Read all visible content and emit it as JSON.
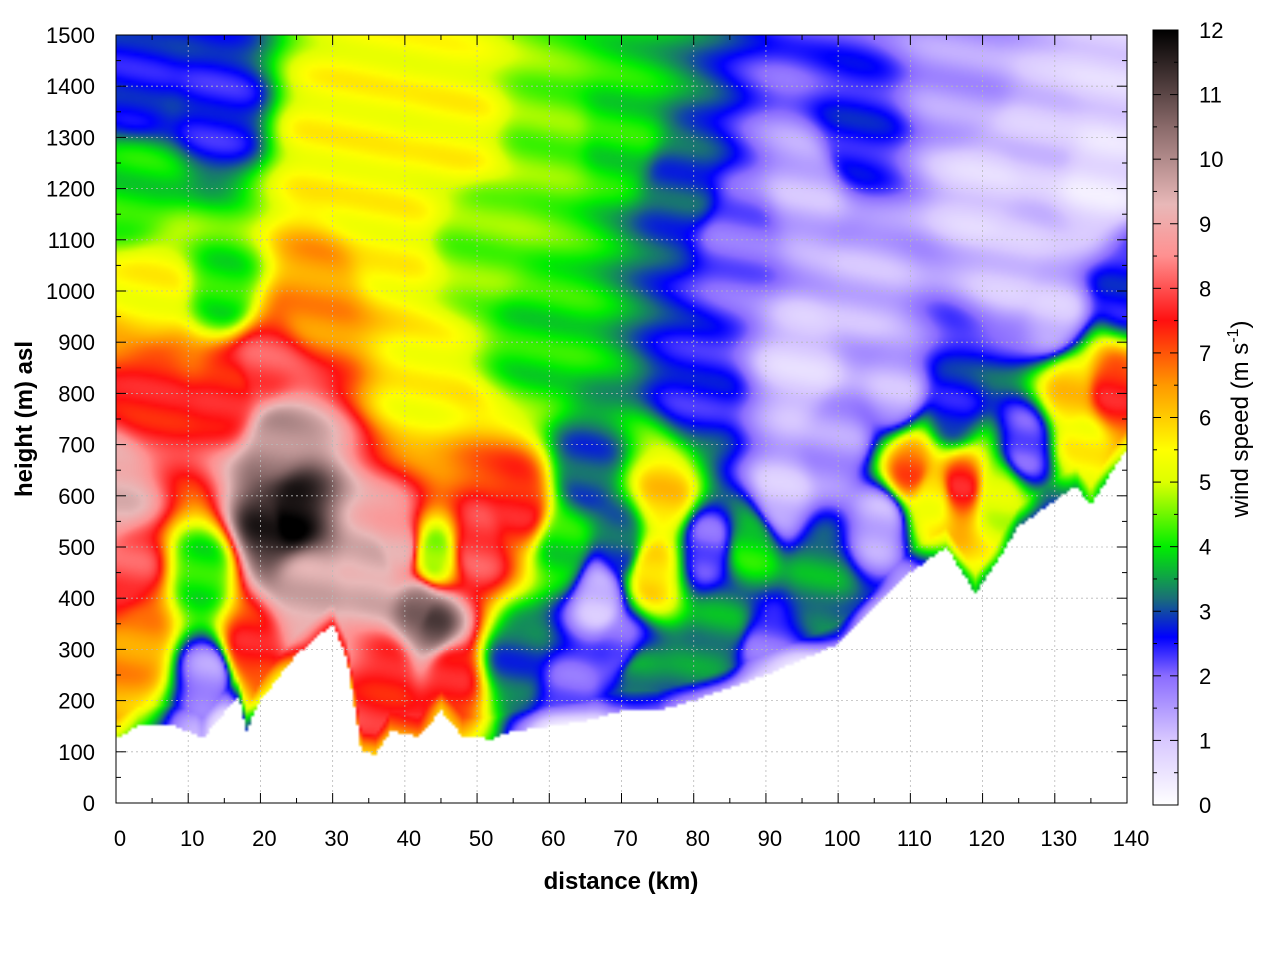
{
  "chart_data": {
    "type": "heatmap",
    "title": "",
    "xlabel": "distance (km)",
    "ylabel": "height (m) asl",
    "xlim": [
      0,
      140
    ],
    "ylim": [
      0,
      1500
    ],
    "x_ticks": [
      "0",
      "10",
      "20",
      "30",
      "40",
      "50",
      "60",
      "70",
      "80",
      "90",
      "100",
      "110",
      "120",
      "130",
      "140"
    ],
    "y_ticks": [
      "0",
      "100",
      "200",
      "300",
      "400",
      "500",
      "600",
      "700",
      "800",
      "900",
      "1000",
      "1100",
      "1200",
      "1300",
      "1400",
      "1500"
    ],
    "grid": true,
    "colorbar": {
      "label_main": "wind speed (m s",
      "label_sup": "-1",
      "label_close": ")",
      "range": [
        0,
        12
      ],
      "ticks": [
        "0",
        "1",
        "2",
        "3",
        "4",
        "5",
        "6",
        "7",
        "8",
        "9",
        "10",
        "11",
        "12"
      ],
      "stops": [
        {
          "v": 0,
          "c": "#ffffff"
        },
        {
          "v": 1,
          "c": "#d8c8ff"
        },
        {
          "v": 2,
          "c": "#8a6cff"
        },
        {
          "v": 2.6,
          "c": "#0000ff"
        },
        {
          "v": 3.2,
          "c": "#1a6e78"
        },
        {
          "v": 4,
          "c": "#00ee00"
        },
        {
          "v": 5,
          "c": "#ddff00"
        },
        {
          "v": 5.5,
          "c": "#ffff00"
        },
        {
          "v": 6.5,
          "c": "#ff9900"
        },
        {
          "v": 7.5,
          "c": "#ff1010"
        },
        {
          "v": 8.5,
          "c": "#ff9090"
        },
        {
          "v": 9.3,
          "c": "#e8b8b8"
        },
        {
          "v": 10.5,
          "c": "#8a6a6a"
        },
        {
          "v": 12,
          "c": "#000000"
        }
      ]
    },
    "terrain_height": [
      [
        0,
        125
      ],
      [
        3,
        150
      ],
      [
        8,
        150
      ],
      [
        11,
        135
      ],
      [
        12,
        125
      ],
      [
        14,
        160
      ],
      [
        17,
        210
      ],
      [
        18,
        140
      ],
      [
        20,
        200
      ],
      [
        25,
        290
      ],
      [
        30,
        350
      ],
      [
        32,
        280
      ],
      [
        34,
        100
      ],
      [
        36,
        95
      ],
      [
        38,
        140
      ],
      [
        42,
        130
      ],
      [
        45,
        180
      ],
      [
        48,
        130
      ],
      [
        52,
        125
      ],
      [
        55,
        140
      ],
      [
        60,
        150
      ],
      [
        65,
        160
      ],
      [
        70,
        180
      ],
      [
        75,
        180
      ],
      [
        80,
        200
      ],
      [
        85,
        225
      ],
      [
        90,
        250
      ],
      [
        95,
        280
      ],
      [
        100,
        310
      ],
      [
        105,
        380
      ],
      [
        110,
        450
      ],
      [
        115,
        500
      ],
      [
        119,
        410
      ],
      [
        122,
        470
      ],
      [
        125,
        540
      ],
      [
        130,
        590
      ],
      [
        133,
        620
      ],
      [
        135,
        580
      ],
      [
        138,
        650
      ],
      [
        140,
        690
      ]
    ],
    "series": [
      {
        "name": "",
        "values": [
          [
            0,
            600,
            9.3
          ],
          [
            2,
            450,
            8
          ],
          [
            3,
            320,
            6.5
          ],
          [
            5,
            800,
            7.5
          ],
          [
            5,
            1000,
            5.5
          ],
          [
            3,
            1200,
            4
          ],
          [
            3,
            1400,
            2.6
          ],
          [
            12,
            450,
            4
          ],
          [
            13,
            250,
            1.5
          ],
          [
            15,
            1000,
            4
          ],
          [
            14,
            1350,
            2.5
          ],
          [
            16,
            800,
            7.5
          ],
          [
            18,
            300,
            7.5
          ],
          [
            21,
            540,
            11.5
          ],
          [
            24,
            560,
            12
          ],
          [
            22,
            700,
            10
          ],
          [
            26,
            420,
            9.5
          ],
          [
            20,
            850,
            8
          ],
          [
            28,
            1000,
            6.5
          ],
          [
            30,
            1300,
            5.5
          ],
          [
            34,
            1200,
            5.5
          ],
          [
            36,
            450,
            9.5
          ],
          [
            39,
            500,
            9
          ],
          [
            42,
            380,
            10.5
          ],
          [
            44,
            350,
            11
          ],
          [
            38,
            250,
            7.5
          ],
          [
            46,
            250,
            7.5
          ],
          [
            42,
            800,
            5.5
          ],
          [
            44,
            480,
            4.5
          ],
          [
            38,
            1100,
            5.5
          ],
          [
            47,
            1300,
            5.5
          ],
          [
            50,
            1100,
            4.5
          ],
          [
            50,
            500,
            8
          ],
          [
            56,
            580,
            7.5
          ],
          [
            55,
            280,
            3
          ],
          [
            58,
            900,
            4
          ],
          [
            60,
            1300,
            4.5
          ],
          [
            62,
            500,
            4
          ],
          [
            63,
            200,
            2
          ],
          [
            65,
            650,
            3
          ],
          [
            67,
            400,
            1
          ],
          [
            70,
            1300,
            4
          ],
          [
            70,
            500,
            3
          ],
          [
            70,
            300,
            2
          ],
          [
            74,
            450,
            6
          ],
          [
            76,
            600,
            6
          ],
          [
            72,
            250,
            3.5
          ],
          [
            78,
            1200,
            3
          ],
          [
            80,
            800,
            2.5
          ],
          [
            82,
            500,
            2
          ],
          [
            84,
            350,
            3.5
          ],
          [
            86,
            1100,
            2
          ],
          [
            88,
            500,
            4
          ],
          [
            90,
            300,
            2
          ],
          [
            92,
            600,
            1
          ],
          [
            95,
            850,
            0.8
          ],
          [
            96,
            1200,
            1.2
          ],
          [
            97,
            450,
            3.5
          ],
          [
            100,
            700,
            1.5
          ],
          [
            102,
            1300,
            2.6
          ],
          [
            104,
            1000,
            1.2
          ],
          [
            106,
            550,
            1.2
          ],
          [
            108,
            800,
            1.2
          ],
          [
            110,
            650,
            7
          ],
          [
            113,
            600,
            5.5
          ],
          [
            117,
            620,
            7.5
          ],
          [
            116,
            760,
            2.6
          ],
          [
            120,
            1200,
            0.8
          ],
          [
            118,
            1400,
            1.5
          ],
          [
            122,
            600,
            5
          ],
          [
            124,
            1050,
            1
          ],
          [
            126,
            700,
            2
          ],
          [
            128,
            1300,
            1
          ],
          [
            130,
            950,
            1
          ],
          [
            132,
            800,
            6
          ],
          [
            134,
            700,
            5.5
          ],
          [
            136,
            1200,
            0.5
          ],
          [
            138,
            800,
            7.5
          ],
          [
            140,
            1000,
            2.6
          ],
          [
            138,
            1450,
            0.8
          ]
        ]
      }
    ]
  }
}
